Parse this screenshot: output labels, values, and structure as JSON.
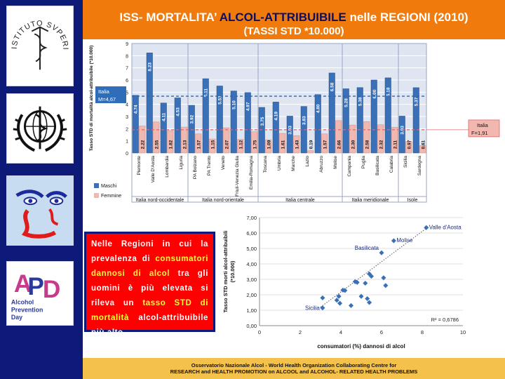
{
  "title": {
    "prefix": "ISS- MORTALITA’ ",
    "highlight": "ALCOL-ATTRIBUIBILE",
    "suffix": " nelle REGIONI (2010)",
    "subtitle": "(TASSI STD *10.000)"
  },
  "callout": {
    "part1": "Nelle Regioni in cui la prevalenza di ",
    "part2": "consumatori dannosi di alcol",
    "part3": " tra gli uomini è più elevata si rileva un ",
    "part4": "tasso STD di mortalità",
    "part5": " alcol-attribuibile più alto."
  },
  "footer": {
    "line1": "Osservatorio Nazionale Alcol  - World Health Organization Collaborating   Centre    for",
    "line2": "RESEARCH and HEALTH    PROMOTION   on     ALCOOL    and ALCOHOL- RELATED    HEALTH   PROBLEMS"
  },
  "logos": {
    "iss_text": "ISTITUTO SVPERIORE DI SANITÀ",
    "apd_text": "Alcohol Prevention Day"
  },
  "chart_data": [
    {
      "type": "bar",
      "ylabel": "Tasso STD di mortalità alcol-attribuibile  (*10.000)",
      "ylim": [
        0,
        9
      ],
      "yticks": [
        0,
        1,
        2,
        3,
        4,
        5,
        6,
        7,
        8,
        9
      ],
      "categories": [
        "Piemonte",
        "Valle D'Aosta",
        "Lombardia",
        "Liguria",
        "PA Bolzano",
        "PA Trento",
        "Veneto",
        "Friuli-Venezia Giulia",
        "Emilia-Romagna",
        "Toscana",
        "Umbria",
        "Marche",
        "Lazio",
        "Abruzzo",
        "Molise",
        "Campania",
        "Puglia",
        "Basilicata",
        "Calabria",
        "Sicilia",
        "Sardegna"
      ],
      "groups": [
        {
          "label": "Italia nord-occidentale",
          "count": 4
        },
        {
          "label": "Italia nord-orientale",
          "count": 5
        },
        {
          "label": "Italia centrale",
          "count": 6
        },
        {
          "label": "Italia meridionale",
          "count": 4
        },
        {
          "label": "Isole",
          "count": 2
        }
      ],
      "series": [
        {
          "name": "Maschi",
          "color": "#3a70b8",
          "values": [
            4.74,
            8.23,
            4.11,
            4.53,
            3.92,
            6.11,
            5.51,
            5.1,
            4.97,
            3.75,
            4.19,
            3.03,
            3.83,
            4.8,
            6.58,
            5.28,
            5.38,
            6.0,
            6.18,
            3.03,
            5.37
          ]
        },
        {
          "name": "Femmine",
          "color": "#f2b8b0",
          "values": [
            2.22,
            2.55,
            1.82,
            2.13,
            1.57,
            1.15,
            2.07,
            1.12,
            1.75,
            1.09,
            1.61,
            1.43,
            0.19,
            1.57,
            2.66,
            2.3,
            2.58,
            2.32,
            2.11,
            0.97,
            0.61
          ]
        }
      ],
      "reference_lines": [
        {
          "label": "Italia\nM=4,67",
          "value": 4.67,
          "color": "#2a66b0"
        },
        {
          "label": "Italia\nF=1,91",
          "value": 1.91,
          "color": "#d86a6a"
        }
      ],
      "grid": true,
      "legend": "bottom-left"
    },
    {
      "type": "scatter",
      "xlabel": "consumatori (%)  dannosi di alcol",
      "ylabel": "Tasso STD  morti alcol-attribuibili (*10.000)",
      "xlim": [
        0,
        10
      ],
      "ylim": [
        0,
        7
      ],
      "xticks": [
        0,
        2,
        4,
        6,
        8,
        10
      ],
      "yticks": [
        "0,00",
        "1,00",
        "2,00",
        "3,00",
        "4,00",
        "5,00",
        "6,00",
        "7,00"
      ],
      "points": [
        {
          "x": 8.2,
          "y": 6.35,
          "label": "Valle d'Aosta"
        },
        {
          "x": 6.6,
          "y": 5.5,
          "label": "Molise"
        },
        {
          "x": 6.0,
          "y": 4.72,
          "label": "Basilicata"
        },
        {
          "x": 3.1,
          "y": 1.15,
          "label": "Sicilia"
        },
        {
          "x": 3.1,
          "y": 1.8,
          "label": ""
        },
        {
          "x": 3.8,
          "y": 1.65,
          "label": ""
        },
        {
          "x": 3.9,
          "y": 1.9,
          "label": ""
        },
        {
          "x": 3.95,
          "y": 1.45,
          "label": ""
        },
        {
          "x": 4.1,
          "y": 2.3,
          "label": ""
        },
        {
          "x": 4.2,
          "y": 2.28,
          "label": ""
        },
        {
          "x": 4.5,
          "y": 1.3,
          "label": ""
        },
        {
          "x": 4.7,
          "y": 2.85,
          "label": ""
        },
        {
          "x": 4.8,
          "y": 2.8,
          "label": ""
        },
        {
          "x": 5.0,
          "y": 1.9,
          "label": ""
        },
        {
          "x": 5.2,
          "y": 2.75,
          "label": ""
        },
        {
          "x": 5.3,
          "y": 1.75,
          "label": ""
        },
        {
          "x": 5.4,
          "y": 1.5,
          "label": ""
        },
        {
          "x": 5.4,
          "y": 3.35,
          "label": ""
        },
        {
          "x": 5.5,
          "y": 3.2,
          "label": ""
        },
        {
          "x": 6.1,
          "y": 3.1,
          "label": ""
        },
        {
          "x": 6.2,
          "y": 2.6,
          "label": ""
        }
      ],
      "trendline": {
        "x": [
          3.0,
          8.3
        ],
        "y": [
          1.2,
          6.4
        ]
      },
      "r_squared_label": "R² = 0,6786"
    }
  ]
}
